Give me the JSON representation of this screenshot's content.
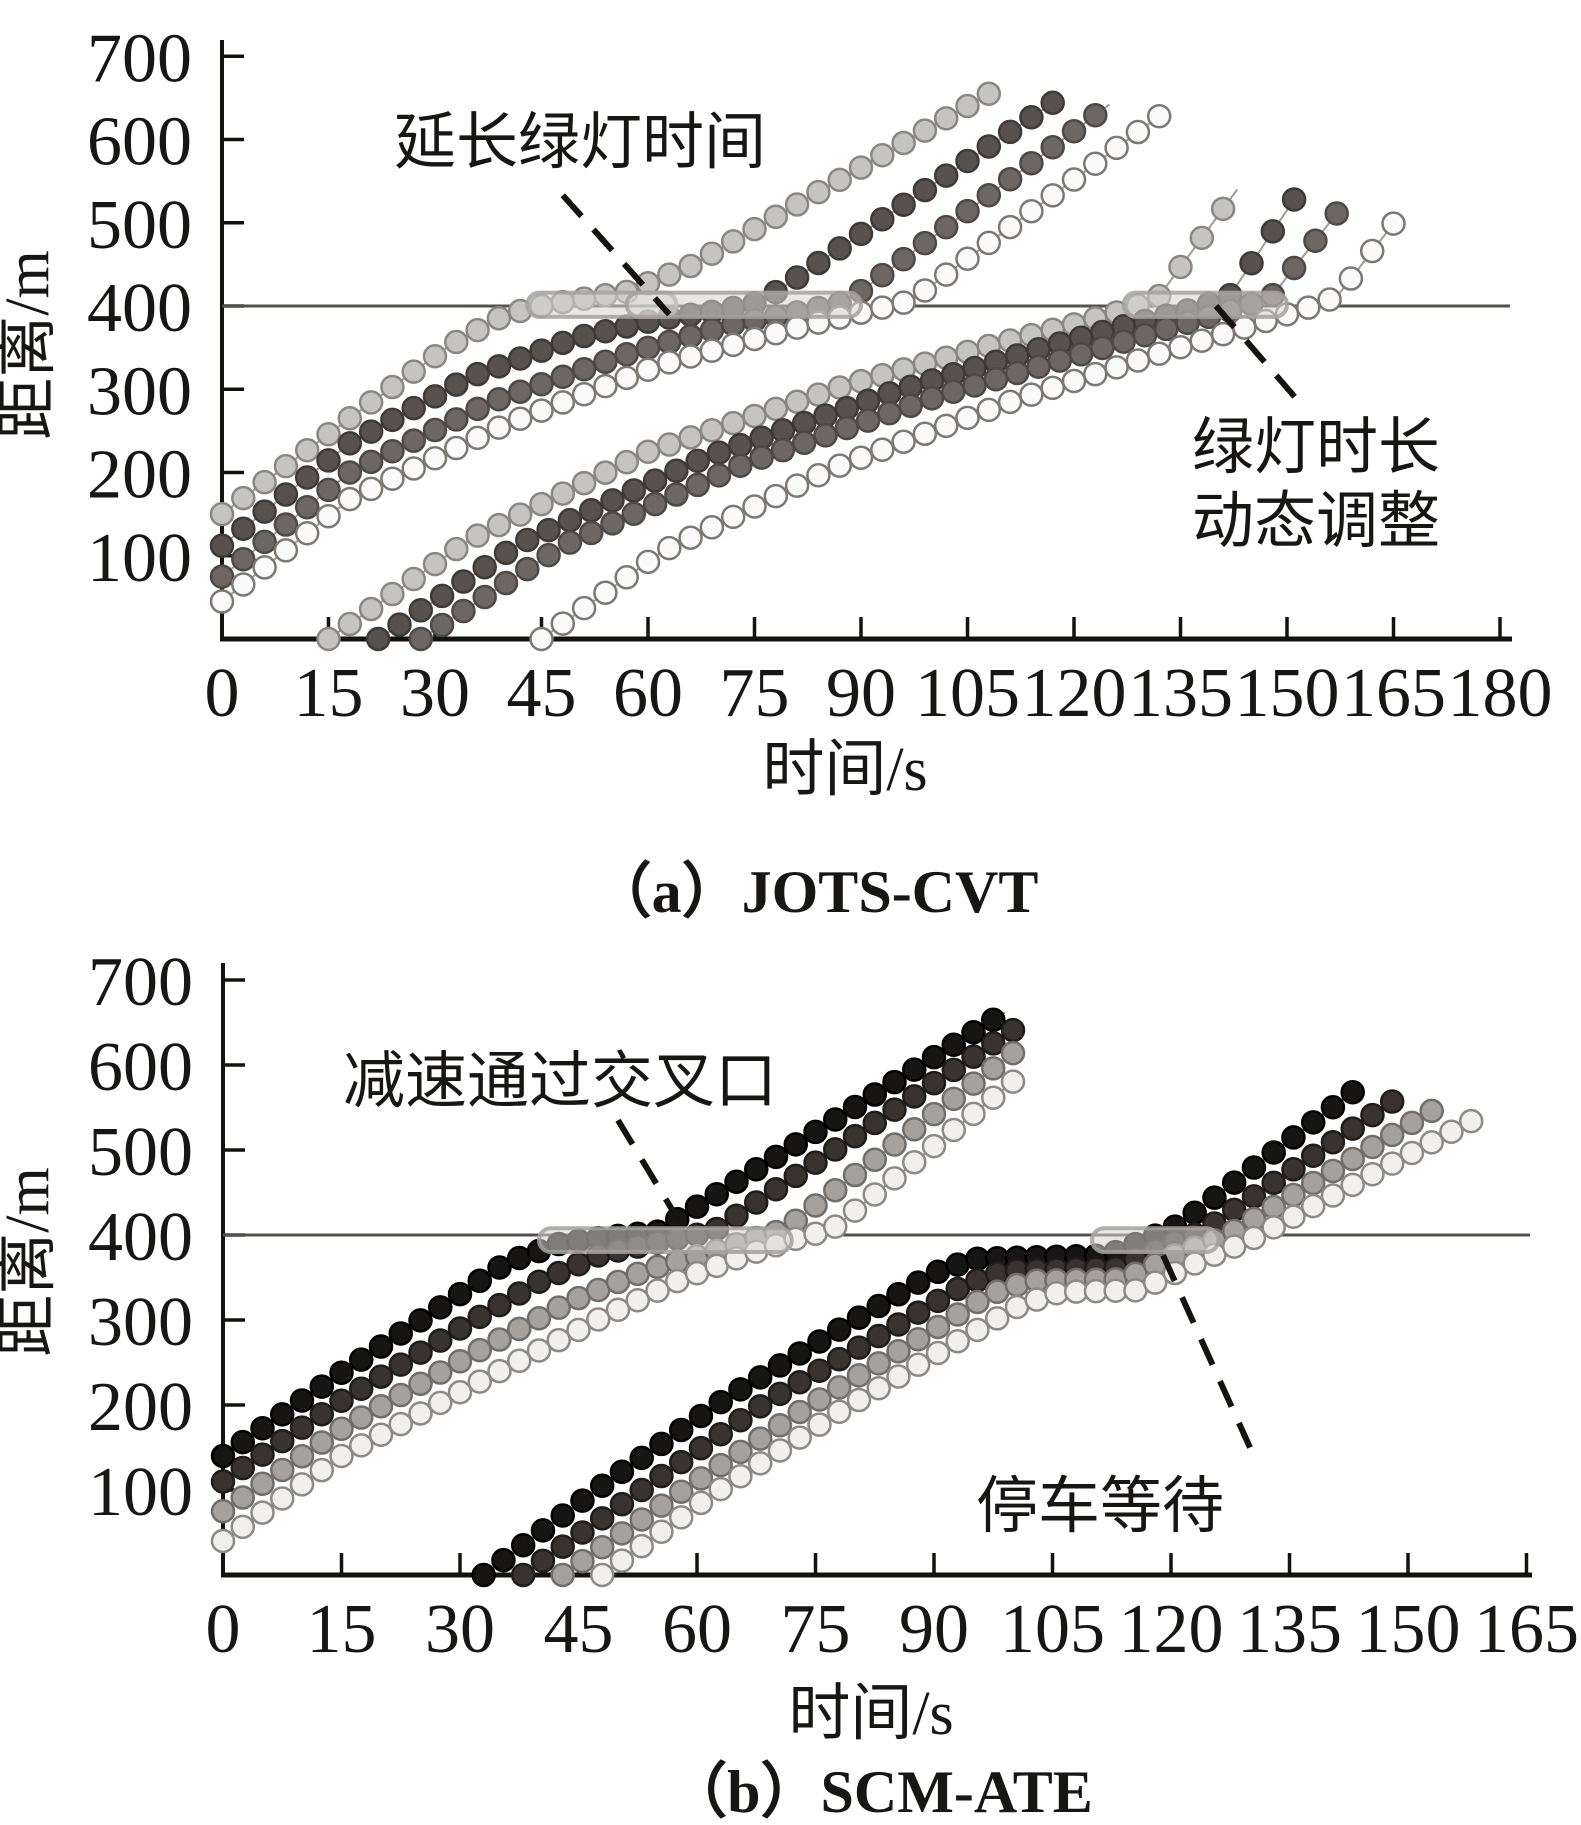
{
  "figure": {
    "background": "#ffffff",
    "description_visible_text_only": true
  },
  "chart_data": [
    {
      "type": "scatter",
      "subtype": "time-space-trajectory-diagram",
      "title": "（a）JOTS-CVT",
      "xlabel": "时间/s",
      "ylabel": "距离/m",
      "x_ticks": [
        0,
        15,
        30,
        45,
        60,
        75,
        90,
        105,
        120,
        135,
        150,
        165,
        180
      ],
      "y_ticks": [
        100,
        200,
        300,
        400,
        500,
        600,
        700
      ],
      "xlim": [
        0,
        182
      ],
      "ylim": [
        0,
        720
      ],
      "grid": false,
      "legend": "none",
      "intersection_line_m": 400,
      "marker_interval_s": 3,
      "colors": {
        "veh1": {
          "fill": "#c6c4c2",
          "edge": "#8a8683"
        },
        "veh2": {
          "fill": "#575150",
          "edge": "#3f3a38"
        },
        "veh3": {
          "fill": "#6c6664",
          "edge": "#4e4846"
        },
        "veh4": {
          "fill": "#fbfafa",
          "edge": "#7c7875"
        },
        "connector": "#a09c99",
        "stop_line": "#55504c",
        "pill_fill": "#d7d5d2",
        "pill_edge": "#a5a19e",
        "dash": "#151310"
      },
      "green_windows": [
        {
          "t_start": 43,
          "t_end": 64
        },
        {
          "t_start": 57,
          "t_end": 90
        },
        {
          "t_start": 127,
          "t_end": 150
        }
      ],
      "green_band_m": [
        387,
        416
      ],
      "annotations": [
        {
          "lines": [
            "延长绿灯时间"
          ],
          "dash_from": [
            48,
            533
          ],
          "dash_to": [
            63,
            390
          ]
        },
        {
          "lines": [
            "绿灯时长",
            "动态调整"
          ],
          "dash_from": [
            140,
            400
          ],
          "dash_to": [
            152,
            282
          ]
        }
      ],
      "series": [
        {
          "name": "platoon1-vehicle1",
          "color_key": "veh1",
          "points": [
            [
              0,
              150
            ],
            [
              20,
              278
            ],
            [
              32,
              352
            ],
            [
              40,
              390
            ],
            [
              46,
              402
            ],
            [
              57,
              417
            ],
            [
              66,
              448
            ],
            [
              108,
              655
            ]
          ]
        },
        {
          "name": "platoon1-vehicle2",
          "color_key": "veh2",
          "points": [
            [
              0,
              112
            ],
            [
              18,
              235
            ],
            [
              35,
              315
            ],
            [
              50,
              362
            ],
            [
              62,
              385
            ],
            [
              70,
              394
            ],
            [
              76,
              405
            ],
            [
              118,
              650
            ]
          ]
        },
        {
          "name": "platoon1-vehicle3",
          "color_key": "veh3",
          "points": [
            [
              0,
              75
            ],
            [
              18,
              200
            ],
            [
              38,
              285
            ],
            [
              58,
              345
            ],
            [
              72,
              378
            ],
            [
              82,
              394
            ],
            [
              88,
              405
            ],
            [
              125,
              642
            ]
          ]
        },
        {
          "name": "platoon1-vehicle4",
          "color_key": "veh4",
          "points": [
            [
              0,
              45
            ],
            [
              18,
              168
            ],
            [
              40,
              258
            ],
            [
              62,
              330
            ],
            [
              80,
              372
            ],
            [
              90,
              392
            ],
            [
              97,
              406
            ],
            [
              132,
              628
            ]
          ]
        },
        {
          "name": "platoon2-vehicle1",
          "color_key": "veh1",
          "points": [
            [
              15,
              0
            ],
            [
              35,
              120
            ],
            [
              60,
              225
            ],
            [
              88,
              305
            ],
            [
              108,
              352
            ],
            [
              120,
              378
            ],
            [
              128,
              397
            ],
            [
              132,
              412
            ],
            [
              143,
              540
            ]
          ]
        },
        {
          "name": "platoon2-vehicle2",
          "color_key": "veh2",
          "points": [
            [
              22,
              0
            ],
            [
              42,
              115
            ],
            [
              68,
              218
            ],
            [
              95,
              298
            ],
            [
              115,
              348
            ],
            [
              128,
              378
            ],
            [
              138,
              399
            ],
            [
              142,
              413
            ],
            [
              151,
              528
            ]
          ]
        },
        {
          "name": "platoon2-vehicle3",
          "color_key": "veh3",
          "points": [
            [
              28,
              0
            ],
            [
              48,
              112
            ],
            [
              74,
              212
            ],
            [
              101,
              292
            ],
            [
              121,
              342
            ],
            [
              134,
              375
            ],
            [
              144,
              399
            ],
            [
              148,
              413
            ],
            [
              158,
              522
            ]
          ]
        },
        {
          "name": "platoon2-vehicle4",
          "color_key": "veh4",
          "points": [
            [
              45,
              0
            ],
            [
              62,
              105
            ],
            [
              86,
              205
            ],
            [
              112,
              288
            ],
            [
              131,
              340
            ],
            [
              144,
              374
            ],
            [
              153,
              398
            ],
            [
              157,
              411
            ],
            [
              166,
              510
            ]
          ]
        }
      ]
    },
    {
      "type": "scatter",
      "subtype": "time-space-trajectory-diagram",
      "title": "（b）SCM-ATE",
      "xlabel": "时间/s",
      "ylabel": "距离/m",
      "x_ticks": [
        0,
        15,
        30,
        45,
        60,
        75,
        90,
        105,
        120,
        135,
        150,
        165
      ],
      "y_ticks": [
        100,
        200,
        300,
        400,
        500,
        600,
        700
      ],
      "xlim": [
        0,
        166
      ],
      "ylim": [
        0,
        720
      ],
      "grid": false,
      "legend": "none",
      "intersection_line_m": 400,
      "marker_interval_s": 2.5,
      "colors": {
        "veh1": {
          "fill": "#161514",
          "edge": "#000000"
        },
        "veh2": {
          "fill": "#383331",
          "edge": "#1f1b19"
        },
        "veh3": {
          "fill": "#a4a19f",
          "edge": "#716d6a"
        },
        "veh4": {
          "fill": "#f1f0ef",
          "edge": "#8d8987"
        },
        "connector": "#8f8b88",
        "stop_line": "#55504c",
        "pill_fill": "#d7d5d2",
        "pill_edge": "#a5a19e",
        "dash": "#151310"
      },
      "green_windows": [
        {
          "t_start": 40,
          "t_end": 72
        },
        {
          "t_start": 110,
          "t_end": 126
        }
      ],
      "green_band_m": [
        380,
        408
      ],
      "annotations": [
        {
          "lines": [
            "减速通过交叉口"
          ],
          "dash_from": [
            50,
            535
          ],
          "dash_to": [
            58,
            412
          ]
        },
        {
          "lines": [
            "停车等待"
          ],
          "dash_from": [
            119,
            376
          ],
          "dash_to": [
            130,
            150
          ]
        }
      ],
      "series": [
        {
          "name": "platoon1-vehicle1",
          "color_key": "veh1",
          "points": [
            [
              0,
              140
            ],
            [
              15,
              238
            ],
            [
              28,
              318
            ],
            [
              36,
              368
            ],
            [
              43,
              391
            ],
            [
              50,
              399
            ],
            [
              55,
              404
            ],
            [
              99,
              662
            ]
          ]
        },
        {
          "name": "platoon1-vehicle2",
          "color_key": "veh2",
          "points": [
            [
              0,
              110
            ],
            [
              15,
              205
            ],
            [
              30,
              290
            ],
            [
              40,
              345
            ],
            [
              48,
              378
            ],
            [
              56,
              393
            ],
            [
              62,
              404
            ],
            [
              100,
              641
            ]
          ]
        },
        {
          "name": "platoon1-vehicle3",
          "color_key": "veh3",
          "points": [
            [
              0,
              75
            ],
            [
              15,
              172
            ],
            [
              32,
              262
            ],
            [
              44,
              322
            ],
            [
              54,
              360
            ],
            [
              62,
              380
            ],
            [
              68,
              398
            ],
            [
              71,
              406
            ],
            [
              100,
              614
            ]
          ]
        },
        {
          "name": "platoon1-vehicle4",
          "color_key": "veh4",
          "points": [
            [
              0,
              40
            ],
            [
              15,
              140
            ],
            [
              34,
              235
            ],
            [
              48,
              303
            ],
            [
              58,
              348
            ],
            [
              66,
              376
            ],
            [
              73,
              397
            ],
            [
              77,
              406
            ],
            [
              101,
              588
            ]
          ]
        },
        {
          "name": "platoon2-vehicle1",
          "color_key": "veh1",
          "points": [
            [
              33,
              0
            ],
            [
              48,
              105
            ],
            [
              64,
              210
            ],
            [
              80,
              300
            ],
            [
              90,
              355
            ],
            [
              95,
              372
            ],
            [
              112,
              376
            ],
            [
              117,
              395
            ],
            [
              121,
              412
            ],
            [
              143,
              568
            ]
          ]
        },
        {
          "name": "platoon2-vehicle2",
          "color_key": "veh2",
          "points": [
            [
              38,
              0
            ],
            [
              53,
              100
            ],
            [
              69,
              205
            ],
            [
              85,
              292
            ],
            [
              94,
              342
            ],
            [
              99,
              358
            ],
            [
              113,
              361
            ],
            [
              119,
              386
            ],
            [
              124,
              404
            ],
            [
              148,
              557
            ]
          ]
        },
        {
          "name": "platoon2-vehicle3",
          "color_key": "veh3",
          "points": [
            [
              43,
              0
            ],
            [
              58,
              98
            ],
            [
              74,
              198
            ],
            [
              89,
              283
            ],
            [
              97,
              330
            ],
            [
              102,
              346
            ],
            [
              114,
              348
            ],
            [
              121,
              378
            ],
            [
              127,
              399
            ],
            [
              153,
              546
            ]
          ]
        },
        {
          "name": "platoon2-vehicle4",
          "color_key": "veh4",
          "points": [
            [
              48,
              0
            ],
            [
              62,
              95
            ],
            [
              78,
              192
            ],
            [
              93,
              275
            ],
            [
              101,
              318
            ],
            [
              106,
              333
            ],
            [
              116,
              335
            ],
            [
              124,
              371
            ],
            [
              130,
              394
            ],
            [
              158,
              534
            ]
          ]
        }
      ]
    }
  ]
}
